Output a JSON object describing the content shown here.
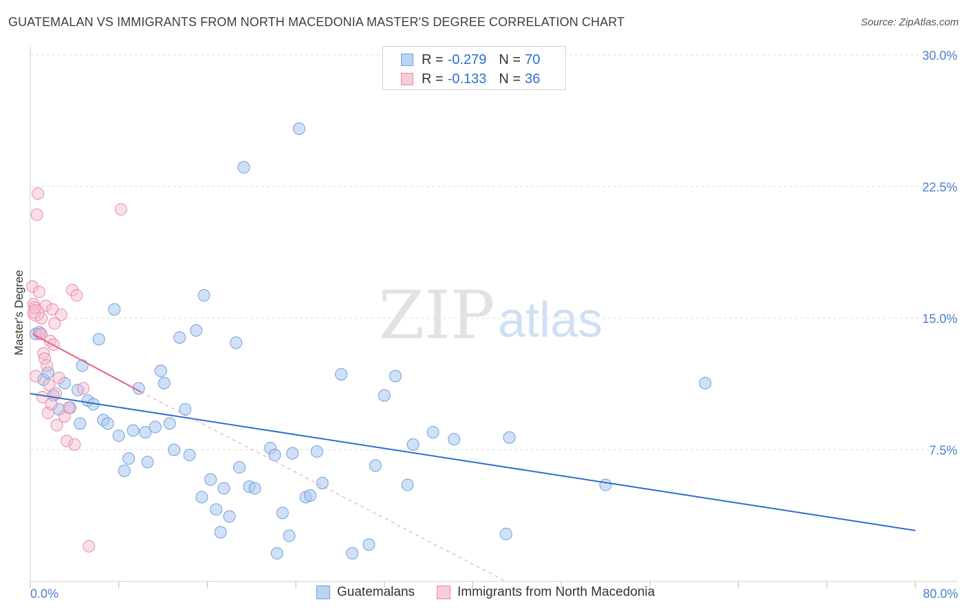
{
  "header": {
    "title": "GUATEMALAN VS IMMIGRANTS FROM NORTH MACEDONIA MASTER'S DEGREE CORRELATION CHART",
    "source": "Source: ZipAtlas.com"
  },
  "legend_top": {
    "rows": [
      {
        "r_label": "R = ",
        "r_value": "-0.279",
        "n_label": "N = ",
        "n_value": "70"
      },
      {
        "r_label": "R = ",
        "r_value": "-0.133",
        "n_label": "N = ",
        "n_value": "36"
      }
    ]
  },
  "watermark": {
    "zip": "ZIP",
    "atlas": "atlas"
  },
  "colors": {
    "blue_fill": "#a9c8f0",
    "blue_stroke": "#6f9fd8",
    "blue_line": "#2b6fcb",
    "pink_fill": "#f6b8cb",
    "pink_stroke": "#e88aa8",
    "pink_line": "#e26b95",
    "axis_text": "#4a7fcf",
    "grid": "#dcdcdc"
  },
  "chart_data": {
    "type": "scatter",
    "title": "GUATEMALAN VS IMMIGRANTS FROM NORTH MACEDONIA MASTER'S DEGREE CORRELATION CHART",
    "xlabel": "",
    "ylabel": "Master's Degree",
    "xlim": [
      0,
      80
    ],
    "ylim": [
      0,
      30
    ],
    "x_tick_labels": [
      "0.0%",
      "80.0%"
    ],
    "y_ticks": [
      7.5,
      15.0,
      22.5,
      30.0
    ],
    "y_tick_labels": [
      "7.5%",
      "15.0%",
      "22.5%",
      "30.0%"
    ],
    "series": [
      {
        "name": "Guatemalans",
        "color": "blue",
        "trend": {
          "x": [
            0,
            80
          ],
          "y": [
            10.7,
            2.9
          ]
        },
        "points": [
          [
            0.5,
            14.1
          ],
          [
            0.8,
            14.2
          ],
          [
            1.2,
            11.5
          ],
          [
            1.6,
            11.9
          ],
          [
            2.1,
            10.6
          ],
          [
            2.6,
            9.8
          ],
          [
            3.1,
            11.3
          ],
          [
            3.6,
            9.9
          ],
          [
            4.3,
            10.9
          ],
          [
            4.5,
            9.0
          ],
          [
            4.7,
            12.3
          ],
          [
            5.2,
            10.3
          ],
          [
            5.7,
            10.1
          ],
          [
            6.2,
            13.8
          ],
          [
            6.6,
            9.2
          ],
          [
            7.0,
            9.0
          ],
          [
            7.6,
            15.5
          ],
          [
            8.0,
            8.3
          ],
          [
            8.5,
            6.3
          ],
          [
            8.9,
            7.0
          ],
          [
            9.3,
            8.6
          ],
          [
            9.8,
            11.0
          ],
          [
            10.4,
            8.5
          ],
          [
            10.6,
            6.8
          ],
          [
            11.3,
            8.8
          ],
          [
            11.8,
            12.0
          ],
          [
            12.1,
            11.3
          ],
          [
            12.6,
            9.0
          ],
          [
            13.0,
            7.5
          ],
          [
            13.5,
            13.9
          ],
          [
            14.0,
            9.8
          ],
          [
            14.4,
            7.2
          ],
          [
            15.0,
            14.3
          ],
          [
            15.5,
            4.8
          ],
          [
            15.7,
            16.3
          ],
          [
            16.3,
            5.8
          ],
          [
            16.8,
            4.1
          ],
          [
            17.2,
            2.8
          ],
          [
            17.5,
            5.3
          ],
          [
            18.0,
            3.7
          ],
          [
            18.6,
            13.6
          ],
          [
            18.9,
            6.5
          ],
          [
            19.3,
            23.6
          ],
          [
            19.8,
            5.4
          ],
          [
            20.3,
            5.3
          ],
          [
            21.7,
            7.6
          ],
          [
            22.1,
            7.2
          ],
          [
            22.3,
            1.6
          ],
          [
            22.8,
            3.9
          ],
          [
            23.4,
            2.6
          ],
          [
            23.7,
            7.3
          ],
          [
            24.3,
            25.8
          ],
          [
            24.9,
            4.8
          ],
          [
            25.3,
            4.9
          ],
          [
            25.9,
            7.4
          ],
          [
            26.4,
            5.6
          ],
          [
            28.1,
            11.8
          ],
          [
            29.1,
            1.6
          ],
          [
            30.6,
            2.1
          ],
          [
            31.2,
            6.6
          ],
          [
            32.0,
            10.6
          ],
          [
            33.0,
            11.7
          ],
          [
            34.1,
            5.5
          ],
          [
            34.6,
            7.8
          ],
          [
            36.4,
            8.5
          ],
          [
            38.3,
            8.1
          ],
          [
            43.0,
            2.7
          ],
          [
            43.3,
            8.2
          ],
          [
            52.0,
            5.5
          ],
          [
            61.0,
            11.3
          ]
        ]
      },
      {
        "name": "Immigrants from North Macedonia",
        "color": "pink",
        "trend": {
          "x": [
            0.2,
            10.0
          ],
          "y": [
            14.1,
            10.8
          ]
        },
        "trend_dashed": {
          "x": [
            10.0,
            43.0
          ],
          "y": [
            10.8,
            0.0
          ]
        },
        "points": [
          [
            0.2,
            16.8
          ],
          [
            0.3,
            15.8
          ],
          [
            0.4,
            15.3
          ],
          [
            0.5,
            11.7
          ],
          [
            0.6,
            20.9
          ],
          [
            0.7,
            22.1
          ],
          [
            0.8,
            16.5
          ],
          [
            0.9,
            14.1
          ],
          [
            1.0,
            15.0
          ],
          [
            1.1,
            10.5
          ],
          [
            1.2,
            13.0
          ],
          [
            1.3,
            12.7
          ],
          [
            1.4,
            15.7
          ],
          [
            1.5,
            12.3
          ],
          [
            1.6,
            9.6
          ],
          [
            1.7,
            11.2
          ],
          [
            1.8,
            13.7
          ],
          [
            1.9,
            10.1
          ],
          [
            2.0,
            15.5
          ],
          [
            2.1,
            13.5
          ],
          [
            2.2,
            14.7
          ],
          [
            2.3,
            10.7
          ],
          [
            2.4,
            8.9
          ],
          [
            2.6,
            11.6
          ],
          [
            2.8,
            15.2
          ],
          [
            3.1,
            9.4
          ],
          [
            3.3,
            8.0
          ],
          [
            3.5,
            9.9
          ],
          [
            3.8,
            16.6
          ],
          [
            4.0,
            7.8
          ],
          [
            4.2,
            16.3
          ],
          [
            4.8,
            11.0
          ],
          [
            5.3,
            2.0
          ],
          [
            8.2,
            21.2
          ],
          [
            1.0,
            14.1
          ],
          [
            0.4,
            15.6
          ]
        ]
      }
    ]
  },
  "bottom_legend": [
    {
      "label": "Guatemalans"
    },
    {
      "label": "Immigrants from North Macedonia"
    }
  ]
}
